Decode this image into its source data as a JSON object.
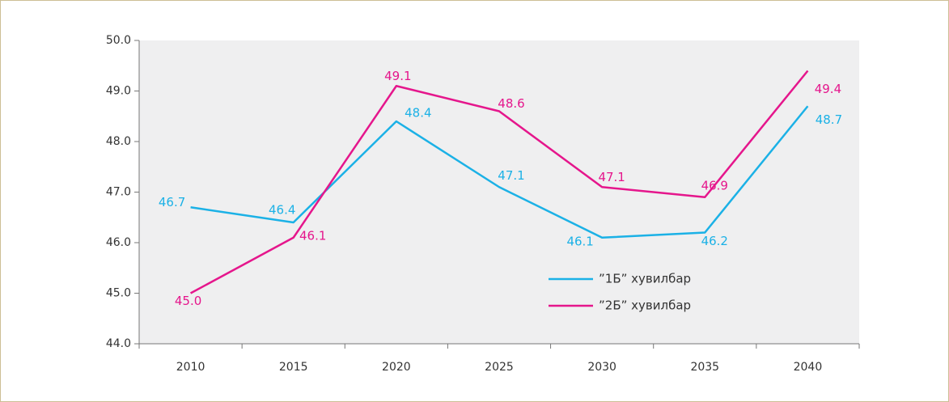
{
  "chart_data": {
    "type": "line",
    "categories": [
      "2010",
      "2015",
      "2020",
      "2025",
      "2030",
      "2035",
      "2040"
    ],
    "series": [
      {
        "name": "”1Б” хувилбар",
        "color": "#1bb1e6",
        "values": [
          46.7,
          46.4,
          48.4,
          47.1,
          46.1,
          46.2,
          48.7
        ]
      },
      {
        "name": "”2Б” хувилбар",
        "color": "#e5168c",
        "values": [
          45,
          46.1,
          49.1,
          48.6,
          47.1,
          46.9,
          49.4
        ],
        "value_labels": [
          "45.0",
          "46.1",
          "49.1",
          "48.6",
          "47.1",
          "46.9",
          "49.4"
        ]
      }
    ],
    "ylim": [
      44,
      50
    ],
    "yticks": [
      {
        "value": 44,
        "label": "44.0"
      },
      {
        "value": 45,
        "label": "45.0"
      },
      {
        "value": 46,
        "label": "46.0"
      },
      {
        "value": 47,
        "label": "47.0"
      },
      {
        "value": 48,
        "label": "48.0"
      },
      {
        "value": 49,
        "label": "49.0"
      },
      {
        "value": 50,
        "label": "50.0"
      }
    ]
  }
}
